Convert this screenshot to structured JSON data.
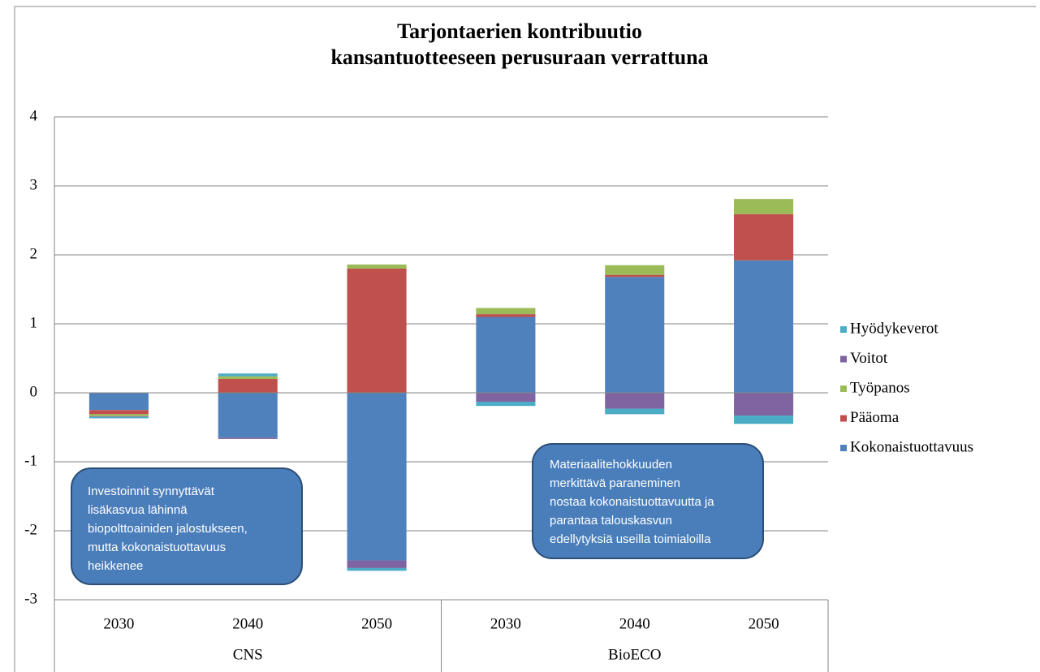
{
  "chart_data": {
    "type": "bar",
    "stacked": true,
    "title": [
      "Tarjontaerien kontribuutio",
      "kansantuotteeseen perusuraan verrattuna"
    ],
    "categories": [
      "2030",
      "2040",
      "2050",
      "2030",
      "2040",
      "2050"
    ],
    "groups": [
      "CNS",
      "BioECO"
    ],
    "series": [
      {
        "name": "Kokonaistuottavuus",
        "color": "#4f81bd",
        "values": [
          -0.25,
          -0.65,
          -2.43,
          1.1,
          1.68,
          1.92
        ]
      },
      {
        "name": "Pääoma",
        "color": "#c0504d",
        "values": [
          -0.06,
          0.2,
          1.8,
          0.04,
          0.03,
          0.67
        ]
      },
      {
        "name": "Työpanos",
        "color": "#9bbb59",
        "values": [
          -0.03,
          0.04,
          0.06,
          0.09,
          0.14,
          0.22
        ]
      },
      {
        "name": "Voitot",
        "color": "#8064a2",
        "values": [
          -0.01,
          -0.02,
          -0.11,
          -0.13,
          -0.23,
          -0.33
        ]
      },
      {
        "name": "Hyödykeverot",
        "color": "#4bacc6",
        "values": [
          -0.02,
          0.04,
          -0.04,
          -0.06,
          -0.08,
          -0.12
        ]
      }
    ],
    "ylim": [
      -3,
      4
    ],
    "yticks": [
      -3,
      -2,
      -1,
      0,
      1,
      2,
      3,
      4
    ],
    "grid": true,
    "legend": "right",
    "annotations": [
      {
        "lines": [
          "Investoinnit synnyttävät",
          "lisäkasvua lähinnä",
          "biopolttoainiden jalostukseen,",
          "mutta kokonaistuottavuus",
          "heikkenee"
        ]
      },
      {
        "lines": [
          "Materiaalitehokkuuden",
          "merkittävä paraneminen",
          "nostaa kokonaistuottavuutta ja",
          "parantaa talouskasvun",
          "edellytyksiä  useilla toimialoilla"
        ]
      }
    ]
  }
}
